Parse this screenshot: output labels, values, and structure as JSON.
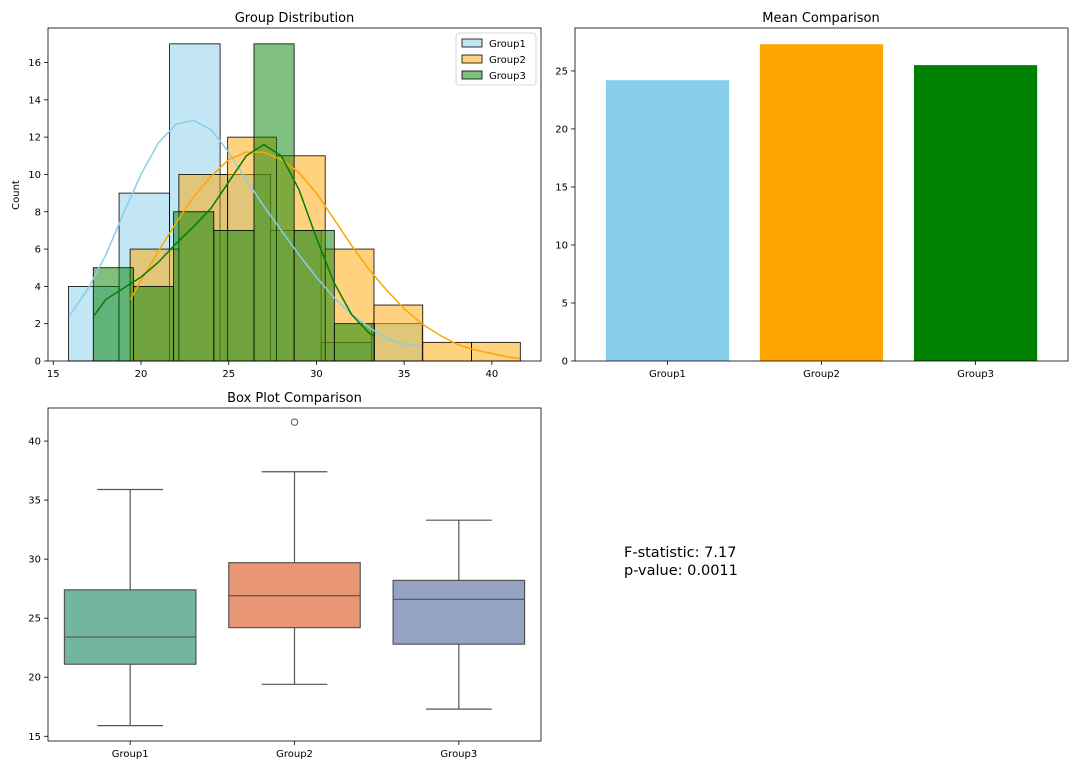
{
  "chart_data": [
    {
      "type": "histogram",
      "title": "Group Distribution",
      "xlabel": "",
      "ylabel": "Count",
      "xlim": [
        14.7,
        42.8
      ],
      "ylim": [
        0,
        17.85
      ],
      "xticks": [
        15,
        20,
        25,
        30,
        35,
        40
      ],
      "yticks": [
        0,
        2,
        4,
        6,
        8,
        10,
        12,
        14,
        16
      ],
      "legend": {
        "position": "top-right",
        "entries": [
          "Group1",
          "Group2",
          "Group3"
        ]
      },
      "series": [
        {
          "name": "Group1",
          "bin_edges": [
            15.87,
            18.75,
            21.63,
            24.51,
            27.39,
            30.27,
            33.15,
            36.03
          ],
          "counts": [
            4,
            9,
            17,
            10,
            7,
            1,
            2
          ],
          "color": "#87ceeb",
          "kde": {
            "x": [
              15.9,
              17,
              18,
              19,
              20,
              21,
              22,
              23,
              24,
              25,
              26,
              27,
              28,
              29,
              30,
              31,
              32,
              33,
              34,
              35,
              36
            ],
            "y": [
              2.4,
              3.9,
              5.7,
              7.9,
              10.0,
              11.7,
              12.7,
              12.9,
              12.4,
              11.2,
              9.7,
              8.3,
              7.0,
              5.7,
              4.5,
              3.4,
              2.5,
              1.8,
              1.2,
              0.9,
              0.8
            ]
          }
        },
        {
          "name": "Group2",
          "bin_edges": [
            19.38,
            22.16,
            24.94,
            27.72,
            30.5,
            33.28,
            36.06,
            38.84,
            41.62
          ],
          "counts": [
            6,
            10,
            12,
            11,
            6,
            3,
            1,
            1
          ],
          "color": "#ffa500",
          "kde": {
            "x": [
              19.4,
              20,
              21,
              22,
              23,
              24,
              25,
              26,
              27,
              28,
              29,
              30,
              31,
              32,
              33,
              34,
              35,
              36,
              37,
              38,
              39,
              40,
              41,
              41.6
            ],
            "y": [
              3.3,
              4.3,
              5.9,
              7.4,
              8.8,
              9.9,
              10.8,
              11.2,
              11.2,
              10.8,
              10.1,
              9.0,
              7.6,
              6.2,
              4.9,
              3.8,
              2.8,
              2.0,
              1.4,
              0.9,
              0.6,
              0.4,
              0.2,
              0.15
            ]
          }
        },
        {
          "name": "Group3",
          "bin_edges": [
            17.28,
            19.57,
            21.86,
            24.15,
            26.44,
            28.73,
            31.02,
            33.31
          ],
          "counts": [
            5,
            4,
            8,
            7,
            17,
            7,
            2
          ],
          "color": "#008000",
          "kde": {
            "x": [
              17.3,
              18,
              19,
              20,
              21,
              22,
              23,
              24,
              25,
              26,
              27,
              28,
              29,
              30,
              31,
              32,
              33,
              33.3
            ],
            "y": [
              2.4,
              3.3,
              3.9,
              4.5,
              5.3,
              6.3,
              7.2,
              8.2,
              9.6,
              11.0,
              11.6,
              11.0,
              9.2,
              6.6,
              4.2,
              2.5,
              1.5,
              1.3
            ]
          }
        }
      ]
    },
    {
      "type": "bar",
      "title": "Mean Comparison",
      "xlabel": "",
      "ylabel": "",
      "categories": [
        "Group1",
        "Group2",
        "Group3"
      ],
      "values": [
        24.2,
        27.3,
        25.5
      ],
      "colors": [
        "#87ceeb",
        "#ffa500",
        "#008000"
      ],
      "ylim": [
        0,
        28.7
      ],
      "yticks": [
        0,
        5,
        10,
        15,
        20,
        25
      ]
    },
    {
      "type": "box",
      "title": "Box Plot Comparison",
      "xlabel": "",
      "ylabel": "",
      "categories": [
        "Group1",
        "Group2",
        "Group3"
      ],
      "ylim": [
        14.6,
        42.8
      ],
      "yticks": [
        15,
        20,
        25,
        30,
        35,
        40
      ],
      "colors": [
        "#72b6a1",
        "#e99675",
        "#95a3c3"
      ],
      "boxes": [
        {
          "name": "Group1",
          "whisker_low": 15.9,
          "q1": 21.1,
          "median": 23.4,
          "q3": 27.4,
          "whisker_high": 35.9,
          "outliers": []
        },
        {
          "name": "Group2",
          "whisker_low": 19.4,
          "q1": 24.2,
          "median": 26.9,
          "q3": 29.7,
          "whisker_high": 37.4,
          "outliers": [
            41.6
          ]
        },
        {
          "name": "Group3",
          "whisker_low": 17.3,
          "q1": 22.8,
          "median": 26.6,
          "q3": 28.2,
          "whisker_high": 33.3,
          "outliers": []
        }
      ]
    }
  ],
  "stats": {
    "f_statistic": "F-statistic: 7.17",
    "p_value": "p-value: 0.0011"
  }
}
